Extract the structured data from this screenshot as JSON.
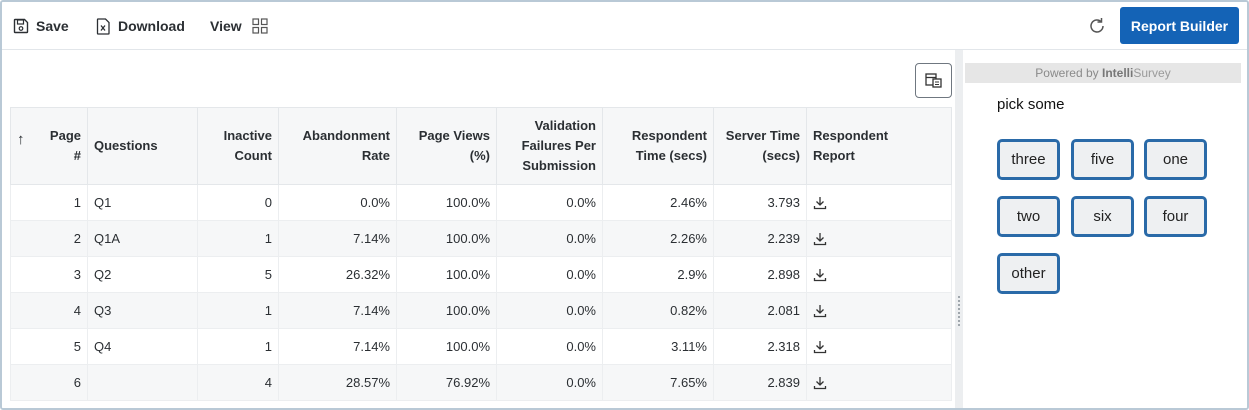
{
  "toolbar": {
    "save_label": "Save",
    "download_label": "Download",
    "view_label": "View",
    "report_builder_label": "Report Builder"
  },
  "colors": {
    "primary": "#1463b6",
    "choice_border": "#2a6aa8",
    "header_bg": "#f6f7f8"
  },
  "table": {
    "sort_arrow": "↑",
    "headers": {
      "page": "Page #",
      "questions": "Questions",
      "inactive": "Inactive Count",
      "abandonment": "Abandonment Rate",
      "page_views": "Page Views (%)",
      "validation": "Validation Failures Per Submission",
      "respondent_time": "Respondent Time (secs)",
      "server_time": "Server Time (secs)",
      "respondent_report": "Respondent Report"
    },
    "rows": [
      {
        "page": "1",
        "question": "Q1",
        "inactive": "0",
        "abandonment": "0.0%",
        "page_views": "100.0%",
        "validation": "0.0%",
        "respondent_time": "2.46%",
        "server_time": "3.793"
      },
      {
        "page": "2",
        "question": "Q1A",
        "inactive": "1",
        "abandonment": "7.14%",
        "page_views": "100.0%",
        "validation": "0.0%",
        "respondent_time": "2.26%",
        "server_time": "2.239"
      },
      {
        "page": "3",
        "question": "Q2",
        "inactive": "5",
        "abandonment": "26.32%",
        "page_views": "100.0%",
        "validation": "0.0%",
        "respondent_time": "2.9%",
        "server_time": "2.898"
      },
      {
        "page": "4",
        "question": "Q3",
        "inactive": "1",
        "abandonment": "7.14%",
        "page_views": "100.0%",
        "validation": "0.0%",
        "respondent_time": "0.82%",
        "server_time": "2.081"
      },
      {
        "page": "5",
        "question": "Q4",
        "inactive": "1",
        "abandonment": "7.14%",
        "page_views": "100.0%",
        "validation": "0.0%",
        "respondent_time": "3.11%",
        "server_time": "2.318"
      },
      {
        "page": "6",
        "question": "",
        "inactive": "4",
        "abandonment": "28.57%",
        "page_views": "76.92%",
        "validation": "0.0%",
        "respondent_time": "7.65%",
        "server_time": "2.839"
      }
    ]
  },
  "preview": {
    "powered_prefix": "Powered by ",
    "brand_bold": "Intelli",
    "brand_rest": "Survey",
    "question": "pick some",
    "choices": [
      "three",
      "five",
      "one",
      "two",
      "six",
      "four",
      "other"
    ]
  }
}
